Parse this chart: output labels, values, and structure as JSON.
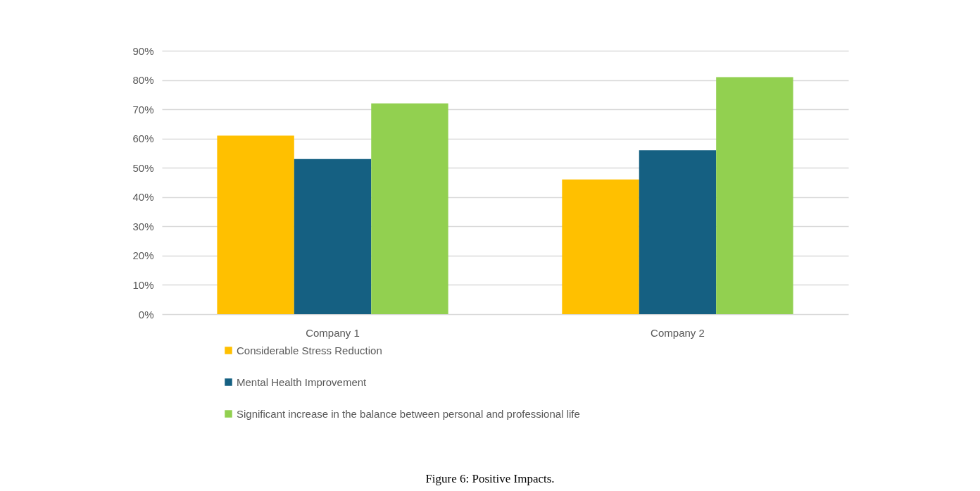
{
  "chart_data": {
    "type": "bar",
    "categories": [
      "Company 1",
      "Company 2"
    ],
    "series": [
      {
        "name": "Considerable Stress Reduction",
        "color": "#ffc000",
        "values": [
          61,
          46
        ]
      },
      {
        "name": "Mental Health Improvement",
        "color": "#156082",
        "values": [
          53,
          56
        ]
      },
      {
        "name": "Significant increase in the balance between personal and professional life",
        "color": "#92d050",
        "values": [
          72,
          81
        ]
      }
    ],
    "ylim": [
      0,
      90
    ],
    "yticks": [
      {
        "value": 0,
        "label": "0%"
      },
      {
        "value": 10,
        "label": "10%"
      },
      {
        "value": 20,
        "label": "20%"
      },
      {
        "value": 30,
        "label": "30%"
      },
      {
        "value": 40,
        "label": "40%"
      },
      {
        "value": 50,
        "label": "50%"
      },
      {
        "value": 60,
        "label": "60%"
      },
      {
        "value": 70,
        "label": "70%"
      },
      {
        "value": 80,
        "label": "80%"
      },
      {
        "value": 90,
        "label": "90%"
      }
    ],
    "grid": "y",
    "legend": "bottom",
    "annotations": [
      "Figure 6: Positive Impacts."
    ]
  }
}
